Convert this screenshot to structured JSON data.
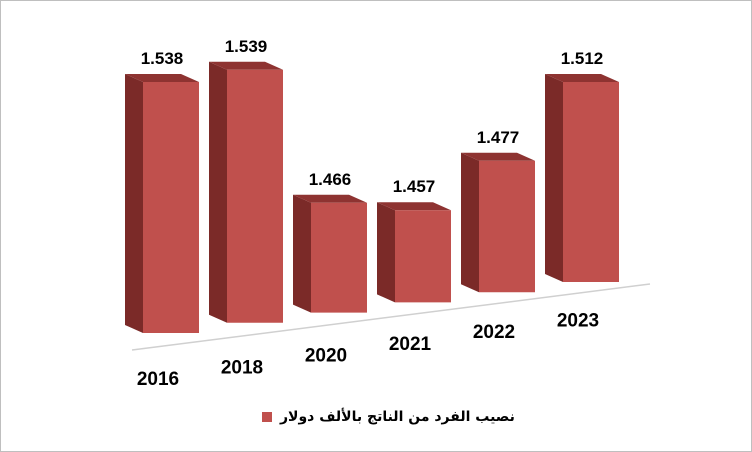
{
  "chart_data": {
    "type": "bar",
    "categories": [
      "2016",
      "2018",
      "2020",
      "2021",
      "2022",
      "2023"
    ],
    "series": [
      {
        "name": "نصيب الفرد من الناتج بالألف دولار",
        "values": [
          1.538,
          1.539,
          1.466,
          1.457,
          1.477,
          1.512
        ]
      }
    ],
    "value_labels": [
      "1.538",
      "1.539",
      "1.466",
      "1.457",
      "1.477",
      "1.512"
    ],
    "title": "",
    "xlabel": "",
    "ylabel": "",
    "ylim": [
      1.41,
      1.55
    ],
    "grid": false,
    "legend_position": "bottom",
    "style": "3d-column",
    "colors": {
      "front": "#c0504d",
      "side": "#7b2a28",
      "top": "#8e3331"
    }
  }
}
